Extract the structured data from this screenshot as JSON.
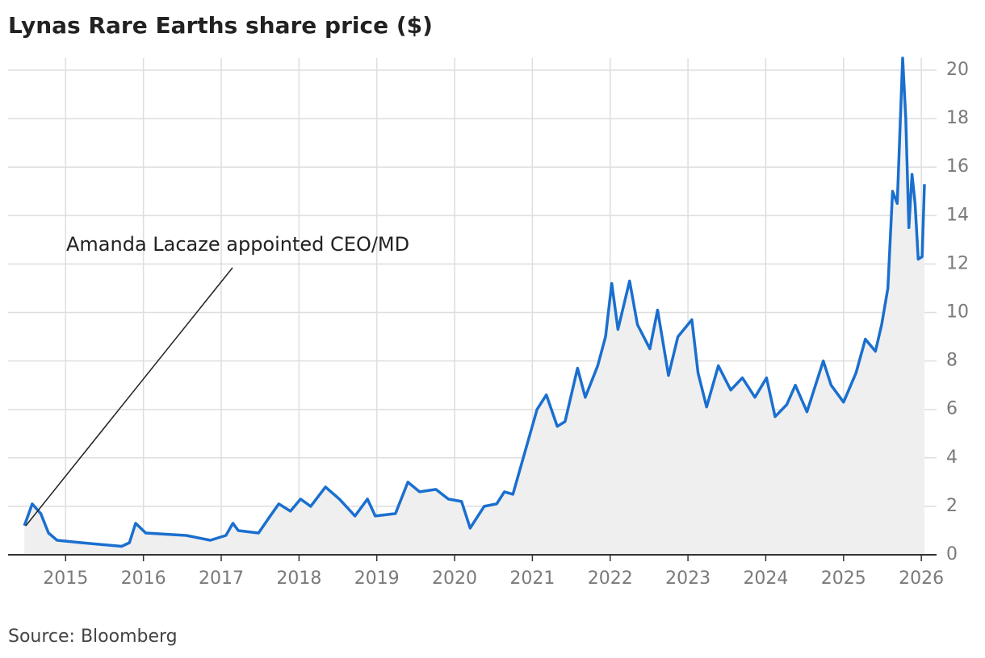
{
  "chart_data": {
    "type": "line",
    "title": "Lynas Rare Earths share price ($)",
    "source": "Source: Bloomberg",
    "annotation": "Amanda Lacaze appointed CEO/MD",
    "color": "#1a6fcf",
    "area_color": "#efefef",
    "grid": true,
    "y_axis_side": "right",
    "x": [
      2014.47,
      2014.57,
      2014.68,
      2014.78,
      2014.89,
      2015.2,
      2015.72,
      2015.82,
      2015.9,
      2016.03,
      2016.55,
      2016.86,
      2017.06,
      2017.15,
      2017.22,
      2017.48,
      2017.63,
      2017.74,
      2017.89,
      2018.02,
      2018.15,
      2018.34,
      2018.52,
      2018.72,
      2018.88,
      2018.98,
      2019.24,
      2019.4,
      2019.55,
      2019.76,
      2019.92,
      2020.09,
      2020.2,
      2020.38,
      2020.54,
      2020.64,
      2020.75,
      2020.9,
      2021.06,
      2021.18,
      2021.32,
      2021.42,
      2021.58,
      2021.68,
      2021.84,
      2021.94,
      2022.02,
      2022.1,
      2022.25,
      2022.35,
      2022.51,
      2022.61,
      2022.75,
      2022.87,
      2023.05,
      2023.13,
      2023.24,
      2023.39,
      2023.55,
      2023.7,
      2023.86,
      2024.01,
      2024.12,
      2024.27,
      2024.38,
      2024.53,
      2024.74,
      2024.84,
      2025.0,
      2025.16,
      2025.28,
      2025.41,
      2025.49,
      2025.57,
      2025.63,
      2025.69,
      2025.76,
      2025.8,
      2025.84,
      2025.88,
      2025.92,
      2025.96,
      2026.01,
      2026.04
    ],
    "values": [
      1.2,
      2.1,
      1.7,
      0.9,
      0.6,
      0.5,
      0.35,
      0.5,
      1.3,
      0.9,
      0.8,
      0.6,
      0.8,
      1.3,
      1.0,
      0.9,
      1.6,
      2.1,
      1.8,
      2.3,
      2.0,
      2.8,
      2.3,
      1.6,
      2.3,
      1.6,
      1.7,
      3.0,
      2.6,
      2.7,
      2.3,
      2.2,
      1.1,
      2.0,
      2.1,
      2.6,
      2.5,
      4.2,
      6.0,
      6.6,
      5.3,
      5.5,
      7.7,
      6.5,
      7.8,
      9.0,
      11.2,
      9.3,
      11.3,
      9.5,
      8.5,
      10.1,
      7.4,
      9.0,
      9.7,
      7.5,
      6.1,
      7.8,
      6.8,
      7.3,
      6.5,
      7.3,
      5.7,
      6.2,
      7.0,
      5.9,
      8.0,
      7.0,
      6.3,
      7.5,
      8.9,
      8.4,
      9.5,
      11.0,
      15.0,
      14.5,
      20.5,
      18.0,
      13.5,
      15.7,
      14.5,
      12.2,
      12.3,
      15.3
    ],
    "xlim": [
      2014.26,
      2026.04
    ],
    "xticks": [
      2015,
      2016,
      2017,
      2018,
      2019,
      2020,
      2021,
      2022,
      2023,
      2024,
      2025,
      2026
    ],
    "ylim": [
      0,
      20.5
    ],
    "yticks": [
      0,
      2,
      4,
      6,
      8,
      10,
      12,
      14,
      16,
      18,
      20
    ]
  }
}
